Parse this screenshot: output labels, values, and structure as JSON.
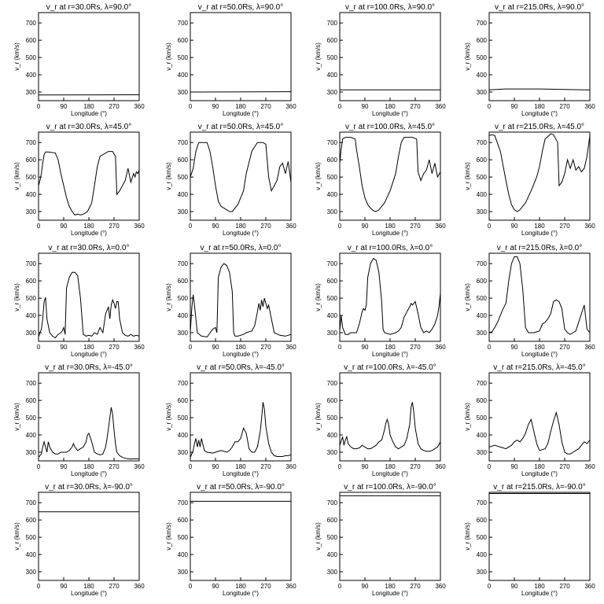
{
  "chart_data": {
    "type": "line",
    "layout": "5x4 grid",
    "xlabel": "Longitude (°)",
    "ylabel": "v_r (km/s)",
    "xlim": [
      0,
      360
    ],
    "ylim": [
      250,
      760
    ],
    "xticks": [
      0,
      90,
      180,
      270,
      360
    ],
    "yticks": [
      300,
      400,
      500,
      600,
      700
    ],
    "grid": false,
    "panels": [
      {
        "title": "v_r at r=30.0Rs, λ=90.0°",
        "x": [
          0,
          360
        ],
        "y": [
          283,
          284
        ]
      },
      {
        "title": "v_r at r=50.0Rs, λ=90.0°",
        "x": [
          0,
          360
        ],
        "y": [
          300,
          302
        ]
      },
      {
        "title": "v_r at r=100.0Rs, λ=90.0°",
        "x": [
          0,
          360
        ],
        "y": [
          313,
          313
        ]
      },
      {
        "title": "v_r at r=215.0Rs, λ=90.0°",
        "x": [
          0,
          60,
          180,
          270,
          360
        ],
        "y": [
          313,
          318,
          318,
          315,
          312
        ]
      },
      {
        "title": "v_r at r=30.0Rs, λ=45.0°",
        "x": [
          0,
          5,
          10,
          15,
          20,
          25,
          35,
          60,
          70,
          80,
          90,
          100,
          110,
          120,
          130,
          140,
          150,
          160,
          175,
          190,
          200,
          210,
          220,
          250,
          265,
          275,
          280,
          290,
          300,
          310,
          320,
          330,
          340,
          345,
          350,
          355,
          360
        ],
        "y": [
          450,
          480,
          520,
          580,
          630,
          645,
          645,
          640,
          600,
          520,
          450,
          380,
          330,
          300,
          280,
          285,
          280,
          285,
          300,
          350,
          450,
          560,
          620,
          648,
          648,
          620,
          400,
          420,
          450,
          480,
          550,
          470,
          520,
          500,
          530,
          520,
          540
        ]
      },
      {
        "title": "v_r at r=50.0Rs, λ=45.0°",
        "x": [
          0,
          10,
          20,
          30,
          60,
          70,
          80,
          90,
          100,
          110,
          120,
          140,
          150,
          170,
          190,
          200,
          220,
          240,
          260,
          270,
          280,
          290,
          300,
          310,
          320,
          330,
          340,
          350,
          360
        ],
        "y": [
          500,
          550,
          650,
          700,
          700,
          650,
          560,
          450,
          360,
          330,
          320,
          300,
          300,
          340,
          420,
          520,
          650,
          700,
          700,
          690,
          500,
          420,
          450,
          480,
          560,
          580,
          520,
          590,
          470
        ]
      },
      {
        "title": "v_r at r=100.0Rs, λ=45.0°",
        "x": [
          0,
          5,
          10,
          20,
          40,
          55,
          60,
          70,
          80,
          90,
          100,
          110,
          120,
          130,
          140,
          160,
          180,
          200,
          210,
          220,
          230,
          260,
          275,
          280,
          290,
          300,
          310,
          320,
          330,
          340,
          350,
          360
        ],
        "y": [
          580,
          660,
          720,
          730,
          730,
          720,
          660,
          560,
          450,
          380,
          340,
          320,
          305,
          300,
          310,
          350,
          420,
          520,
          620,
          700,
          730,
          730,
          720,
          530,
          480,
          520,
          540,
          600,
          520,
          580,
          500,
          530
        ]
      },
      {
        "title": "v_r at r=215.0Rs, λ=45.0°",
        "x": [
          0,
          10,
          20,
          40,
          60,
          70,
          80,
          90,
          100,
          110,
          130,
          150,
          170,
          180,
          190,
          200,
          220,
          230,
          245,
          250,
          260,
          270,
          280,
          290,
          300,
          310,
          320,
          330,
          340,
          350,
          360
        ],
        "y": [
          740,
          745,
          740,
          650,
          480,
          400,
          340,
          310,
          300,
          310,
          350,
          420,
          500,
          560,
          650,
          720,
          750,
          745,
          700,
          450,
          470,
          520,
          600,
          550,
          600,
          540,
          560,
          530,
          550,
          620,
          740
        ]
      },
      {
        "title": "v_r at r=30.0Rs, λ=0.0°",
        "x": [
          0,
          5,
          10,
          15,
          20,
          25,
          30,
          40,
          50,
          60,
          70,
          80,
          85,
          90,
          95,
          100,
          110,
          120,
          130,
          140,
          150,
          160,
          170,
          180,
          190,
          200,
          210,
          220,
          230,
          240,
          250,
          255,
          260,
          265,
          270,
          275,
          280,
          285,
          290,
          300,
          310,
          320,
          330,
          340,
          350,
          360
        ],
        "y": [
          275,
          300,
          320,
          380,
          480,
          505,
          380,
          300,
          280,
          270,
          290,
          300,
          310,
          330,
          290,
          560,
          620,
          650,
          650,
          630,
          500,
          290,
          280,
          285,
          280,
          300,
          290,
          330,
          300,
          410,
          450,
          380,
          460,
          490,
          470,
          440,
          480,
          480,
          380,
          300,
          285,
          280,
          290,
          280,
          285,
          280
        ]
      },
      {
        "title": "v_r at r=50.0Rs, λ=0.0°",
        "x": [
          0,
          5,
          10,
          15,
          20,
          25,
          40,
          60,
          80,
          90,
          95,
          100,
          110,
          120,
          130,
          140,
          150,
          155,
          160,
          170,
          190,
          200,
          220,
          230,
          240,
          245,
          250,
          255,
          260,
          265,
          270,
          275,
          280,
          290,
          300,
          320,
          340,
          350,
          360
        ],
        "y": [
          300,
          440,
          520,
          460,
          380,
          300,
          280,
          275,
          320,
          330,
          300,
          620,
          680,
          700,
          690,
          650,
          540,
          300,
          280,
          280,
          290,
          300,
          310,
          340,
          420,
          470,
          430,
          490,
          450,
          500,
          470,
          440,
          460,
          380,
          300,
          285,
          280,
          285,
          290
        ]
      },
      {
        "title": "v_r at r=100.0Rs, λ=0.0°",
        "x": [
          0,
          5,
          10,
          20,
          30,
          40,
          60,
          70,
          80,
          85,
          90,
          95,
          100,
          110,
          120,
          130,
          140,
          150,
          155,
          160,
          180,
          200,
          210,
          220,
          230,
          240,
          250,
          255,
          260,
          270,
          280,
          290,
          300,
          310,
          320,
          330,
          340,
          350,
          355,
          360
        ],
        "y": [
          310,
          400,
          330,
          290,
          290,
          300,
          300,
          350,
          420,
          440,
          430,
          460,
          620,
          700,
          730,
          720,
          650,
          480,
          320,
          300,
          290,
          300,
          310,
          330,
          390,
          420,
          450,
          470,
          460,
          480,
          410,
          330,
          300,
          310,
          300,
          320,
          350,
          400,
          450,
          530
        ]
      },
      {
        "title": "v_r at r=215.0Rs, λ=0.0°",
        "x": [
          0,
          10,
          20,
          30,
          40,
          50,
          60,
          70,
          80,
          90,
          100,
          110,
          120,
          130,
          140,
          160,
          180,
          190,
          200,
          210,
          220,
          230,
          240,
          250,
          260,
          270,
          280,
          290,
          300,
          310,
          320,
          330,
          340,
          350,
          360
        ],
        "y": [
          300,
          305,
          330,
          360,
          400,
          440,
          470,
          600,
          700,
          740,
          740,
          700,
          550,
          330,
          300,
          300,
          310,
          350,
          360,
          380,
          410,
          480,
          490,
          480,
          440,
          320,
          300,
          290,
          300,
          310,
          360,
          410,
          460,
          320,
          300
        ]
      },
      {
        "title": "v_r at r=30.0Rs, λ=-45.0°",
        "x": [
          0,
          10,
          15,
          20,
          25,
          30,
          35,
          40,
          50,
          60,
          70,
          80,
          90,
          100,
          110,
          120,
          125,
          130,
          140,
          150,
          160,
          170,
          175,
          180,
          190,
          200,
          210,
          220,
          230,
          240,
          245,
          250,
          255,
          260,
          265,
          270,
          275,
          280,
          290,
          300,
          310,
          320,
          330,
          340,
          350,
          360
        ],
        "y": [
          270,
          290,
          330,
          360,
          330,
          300,
          360,
          330,
          300,
          290,
          290,
          300,
          300,
          300,
          310,
          330,
          350,
          330,
          310,
          320,
          330,
          360,
          400,
          410,
          360,
          300,
          290,
          285,
          290,
          330,
          380,
          440,
          500,
          560,
          520,
          430,
          350,
          300,
          280,
          270,
          265,
          262,
          260,
          262,
          262,
          262
        ]
      },
      {
        "title": "v_r at r=50.0Rs, λ=-45.0°",
        "x": [
          0,
          10,
          15,
          20,
          25,
          30,
          35,
          40,
          50,
          60,
          80,
          90,
          110,
          130,
          140,
          150,
          160,
          170,
          180,
          190,
          200,
          210,
          220,
          230,
          240,
          250,
          255,
          260,
          265,
          270,
          280,
          290,
          300,
          310,
          320,
          330,
          340,
          350,
          360
        ],
        "y": [
          270,
          310,
          350,
          380,
          330,
          370,
          330,
          380,
          310,
          300,
          295,
          300,
          310,
          300,
          310,
          330,
          360,
          360,
          380,
          440,
          410,
          320,
          300,
          300,
          330,
          420,
          500,
          590,
          550,
          450,
          350,
          300,
          280,
          275,
          275,
          275,
          280,
          280,
          285
        ]
      },
      {
        "title": "v_r at r=100.0Rs, λ=-45.0°",
        "x": [
          0,
          10,
          15,
          20,
          25,
          30,
          40,
          50,
          60,
          70,
          80,
          90,
          100,
          110,
          120,
          130,
          140,
          150,
          160,
          165,
          170,
          175,
          180,
          190,
          200,
          210,
          220,
          230,
          240,
          250,
          255,
          260,
          265,
          270,
          280,
          290,
          300,
          310,
          320,
          330,
          340,
          350,
          360
        ],
        "y": [
          340,
          390,
          340,
          370,
          390,
          350,
          330,
          320,
          320,
          325,
          340,
          330,
          320,
          320,
          330,
          340,
          360,
          370,
          430,
          470,
          490,
          460,
          400,
          360,
          330,
          320,
          330,
          340,
          380,
          460,
          560,
          590,
          530,
          440,
          350,
          320,
          310,
          305,
          305,
          310,
          320,
          330,
          360
        ]
      },
      {
        "title": "v_r at r=215.0Rs, λ=-45.0°",
        "x": [
          0,
          20,
          40,
          60,
          80,
          90,
          100,
          110,
          120,
          130,
          140,
          150,
          160,
          170,
          180,
          200,
          210,
          220,
          230,
          240,
          250,
          260,
          270,
          280,
          290,
          300,
          310,
          320,
          330,
          340,
          350,
          360
        ],
        "y": [
          330,
          340,
          330,
          320,
          340,
          360,
          370,
          360,
          380,
          410,
          460,
          490,
          420,
          350,
          310,
          320,
          350,
          420,
          480,
          530,
          460,
          360,
          300,
          290,
          290,
          300,
          310,
          320,
          340,
          360,
          350,
          370
        ]
      },
      {
        "title": "v_r at r=30.0Rs, λ=-90.0°",
        "x": [
          0,
          360
        ],
        "y": [
          647,
          647
        ]
      },
      {
        "title": "v_r at r=50.0Rs, λ=-90.0°",
        "x": [
          0,
          360
        ],
        "y": [
          708,
          708
        ]
      },
      {
        "title": "v_r at r=100.0Rs, λ=-90.0°",
        "x": [
          0,
          360
        ],
        "y": [
          740,
          740
        ]
      },
      {
        "title": "v_r at r=215.0Rs, λ=-90.0°",
        "x": [
          0,
          360
        ],
        "y": [
          753,
          753
        ]
      }
    ]
  }
}
